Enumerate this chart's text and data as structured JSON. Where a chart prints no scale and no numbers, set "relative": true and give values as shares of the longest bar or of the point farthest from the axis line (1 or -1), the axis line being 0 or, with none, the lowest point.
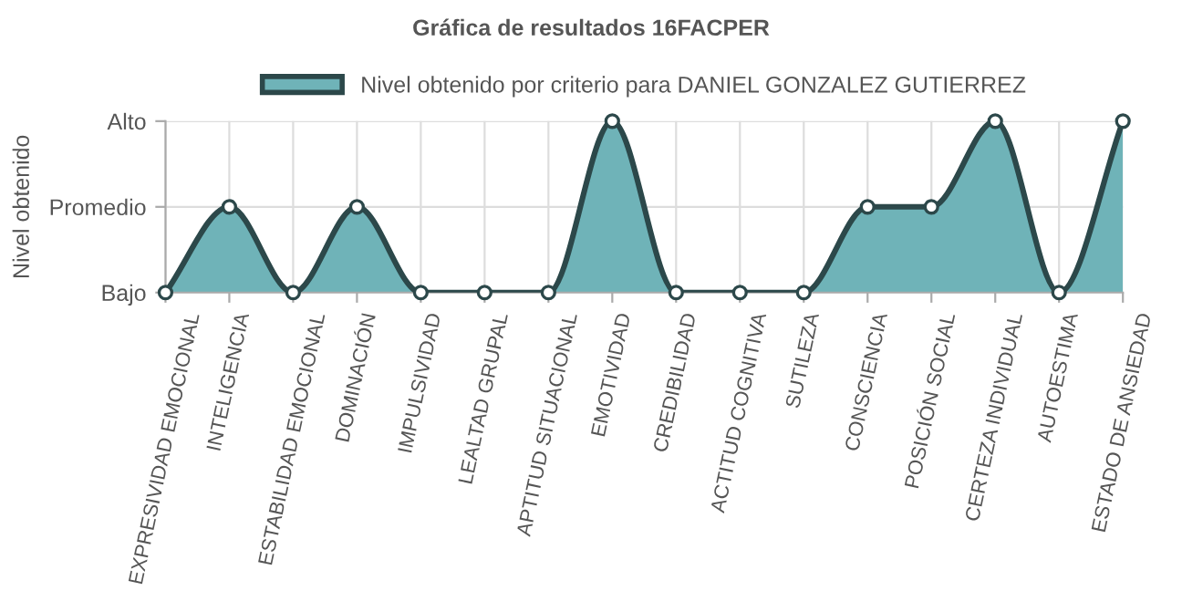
{
  "chart_data": {
    "type": "area",
    "title": "Gráfica de resultados 16FACPER",
    "ylabel": "Nivel obtenido",
    "categories": [
      "EXPRESIVIDAD EMOCIONAL",
      "INTELIGENCIA",
      "ESTABILIDAD EMOCIONAL",
      "DOMINACIÓN",
      "IMPULSIVIDAD",
      "LEALTAD GRUPAL",
      "APTITUD SITUACIONAL",
      "EMOTIVIDAD",
      "CREDIBILIDAD",
      "ACTITUD COGNITIVA",
      "SUTILEZA",
      "CONSCIENCIA",
      "POSICIÓN SOCIAL",
      "CERTEZA INDIVIDUAL",
      "AUTOESTIMA",
      "ESTADO DE ANSIEDAD"
    ],
    "y_categories": [
      "Alto",
      "Promedio",
      "Bajo"
    ],
    "relative": true,
    "series": [
      {
        "name": "Nivel obtenido por criterio para DANIEL GONZALEZ GUTIERREZ",
        "color": "#6fb3b8",
        "values": [
          0,
          0.5,
          0,
          0.5,
          0,
          0,
          0,
          1,
          0,
          0,
          0,
          0.5,
          0.5,
          1,
          0,
          1
        ]
      }
    ],
    "grid": true,
    "legend": "top",
    "marker": "circle",
    "line_style": "solid"
  }
}
